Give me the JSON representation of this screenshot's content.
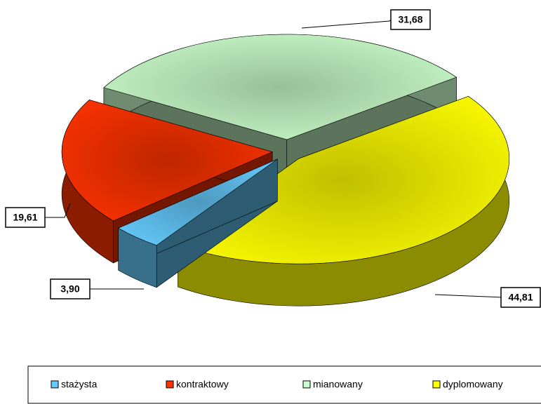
{
  "chart_data": {
    "type": "pie",
    "categories": [
      "stażysta",
      "kontraktowy",
      "mianowany",
      "dyplomowany"
    ],
    "values": [
      3.9,
      19.61,
      31.68,
      44.81
    ],
    "value_labels": [
      "3,90",
      "19,61",
      "31,68",
      "44,81"
    ],
    "colors": [
      "#66ccff",
      "#ff3300",
      "#ccffcc",
      "#ffff00"
    ],
    "legend": "bottom"
  }
}
